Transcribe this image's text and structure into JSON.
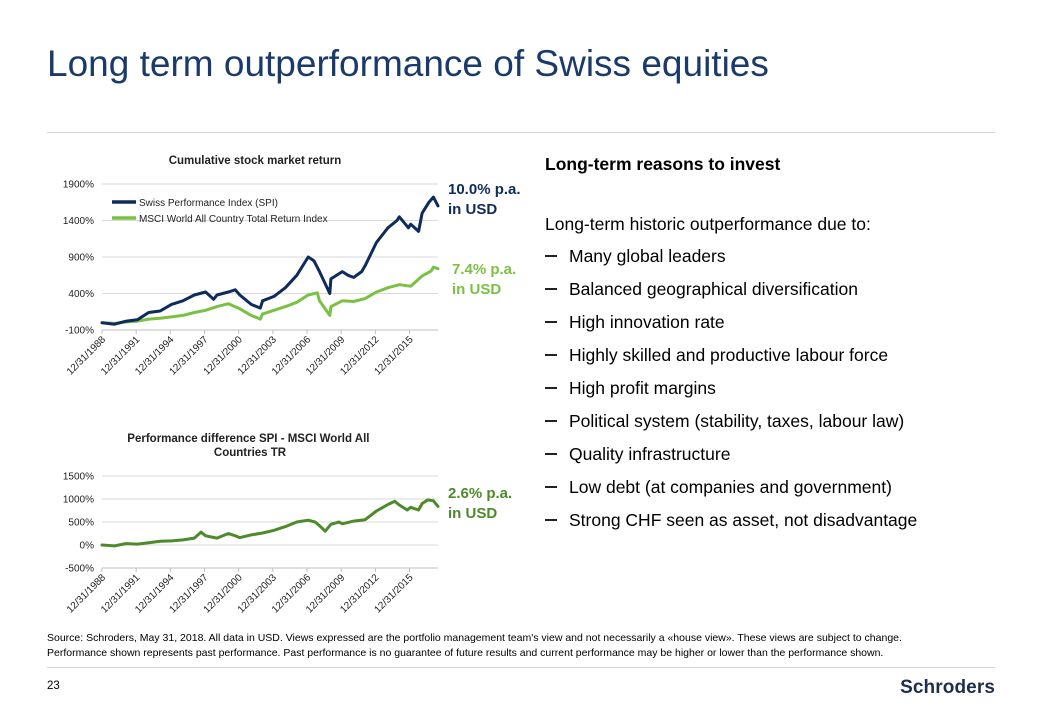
{
  "title": "Long term outperformance of Swiss equities",
  "right_panel": {
    "heading": "Long-term reasons to invest",
    "intro": "Long-term historic outperformance due to:",
    "bullets": [
      "Many global leaders",
      "Balanced geographical diversification",
      "High innovation rate",
      "Highly skilled and productive labour force",
      "High profit margins",
      "Political system (stability, taxes, labour law)",
      "Quality infrastructure",
      "Low debt (at companies and government)",
      "Strong CHF seen as asset, not disadvantage"
    ]
  },
  "callouts": {
    "spi_line1": "10.0% p.a.",
    "spi_line2": "in USD",
    "msci_line1": "7.4% p.a.",
    "msci_line2": "in USD",
    "diff_line1": "2.6% p.a.",
    "diff_line2": "in USD"
  },
  "colors": {
    "title": "#1a3a6b",
    "spi": "#0d2b5c",
    "msci": "#7ac143",
    "diff": "#4d8a2a",
    "grid": "#d9d9d9"
  },
  "chart_data": [
    {
      "type": "line",
      "title": "Cumulative stock market return",
      "categories": [
        "12/31/1988",
        "12/31/1991",
        "12/31/1994",
        "12/31/1997",
        "12/31/2000",
        "12/31/2003",
        "12/31/2006",
        "12/31/2009",
        "12/31/2012",
        "12/31/2015"
      ],
      "yticks": [
        -100,
        400,
        900,
        1400,
        1900
      ],
      "ytick_labels": [
        "-100%",
        "400%",
        "900%",
        "1400%",
        "1900%"
      ],
      "ylim": [
        -100,
        1900
      ],
      "x_range": [
        1988.9,
        2018.4
      ],
      "legend": "top-left",
      "series": [
        {
          "name": "Swiss Performance Index (SPI)",
          "x": [
            1988.9,
            1990,
            1991,
            1992,
            1993,
            1994,
            1995,
            1996,
            1997,
            1998,
            1998.7,
            1999,
            2000,
            2000.6,
            2001,
            2002,
            2002.8,
            2003,
            2004,
            2005,
            2006,
            2007,
            2007.5,
            2008,
            2008.9,
            2009,
            2010,
            2010.5,
            2011,
            2011.7,
            2012,
            2013,
            2014,
            2014.8,
            2015,
            2015.8,
            2016,
            2016.7,
            2017,
            2017.6,
            2018,
            2018.4
          ],
          "values": [
            0,
            -20,
            20,
            40,
            140,
            160,
            250,
            300,
            380,
            420,
            320,
            380,
            420,
            450,
            380,
            250,
            200,
            300,
            360,
            480,
            650,
            900,
            850,
            700,
            400,
            600,
            700,
            650,
            620,
            700,
            780,
            1100,
            1300,
            1400,
            1450,
            1300,
            1350,
            1250,
            1500,
            1650,
            1720,
            1600
          ]
        },
        {
          "name": "MSCI World All Country Total Return Index",
          "x": [
            1988.9,
            1990,
            1991,
            1992,
            1993,
            1994,
            1995,
            1996,
            1997,
            1998,
            1999,
            2000,
            2001,
            2002,
            2002.8,
            2003,
            2004,
            2005,
            2006,
            2007,
            2007.8,
            2008,
            2008.9,
            2009,
            2010,
            2011,
            2012,
            2013,
            2014,
            2015,
            2016,
            2017,
            2017.8,
            2018,
            2018.4
          ],
          "values": [
            0,
            -10,
            10,
            20,
            50,
            60,
            80,
            100,
            140,
            170,
            220,
            260,
            190,
            100,
            50,
            120,
            170,
            220,
            280,
            380,
            410,
            300,
            100,
            220,
            300,
            290,
            330,
            420,
            480,
            520,
            500,
            640,
            710,
            760,
            740
          ]
        }
      ]
    },
    {
      "type": "line",
      "title": "Performance difference SPI - MSCI World All Countries TR",
      "categories": [
        "12/31/1988",
        "12/31/1991",
        "12/31/1994",
        "12/31/1997",
        "12/31/2000",
        "12/31/2003",
        "12/31/2006",
        "12/31/2009",
        "12/31/2012",
        "12/31/2015"
      ],
      "yticks": [
        -500,
        0,
        500,
        1000,
        1500
      ],
      "ytick_labels": [
        "-500%",
        "0%",
        "500%",
        "1000%",
        "1500%"
      ],
      "ylim": [
        -500,
        1500
      ],
      "x_range": [
        1988.9,
        2018.4
      ],
      "series": [
        {
          "name": "Performance difference",
          "x": [
            1988.9,
            1990,
            1991,
            1992,
            1993,
            1994,
            1995,
            1996,
            1997,
            1997.6,
            1998,
            1999,
            2000,
            2000.6,
            2001,
            2002,
            2003,
            2004,
            2005,
            2006,
            2007,
            2007.6,
            2008,
            2008.5,
            2009,
            2009.7,
            2010,
            2011,
            2012,
            2013,
            2014,
            2014.6,
            2015,
            2015.7,
            2016,
            2016.7,
            2017,
            2017.5,
            2018,
            2018.4
          ],
          "values": [
            0,
            -20,
            30,
            20,
            50,
            80,
            90,
            110,
            150,
            280,
            200,
            150,
            250,
            200,
            160,
            220,
            260,
            320,
            400,
            500,
            540,
            500,
            420,
            300,
            450,
            500,
            460,
            520,
            550,
            740,
            880,
            950,
            870,
            760,
            820,
            760,
            900,
            980,
            960,
            840
          ]
        }
      ]
    }
  ],
  "source_line1": "Source: Schroders, May 31, 2018. All data in USD. Views expressed are the portfolio management team's view and not necessarily a «house view». These views are subject to change.",
  "source_line2": "Performance shown represents past performance. Past performance is no guarantee of future results and current performance may be higher or lower than the performance shown.",
  "page_number": "23",
  "logo": "Schroders"
}
